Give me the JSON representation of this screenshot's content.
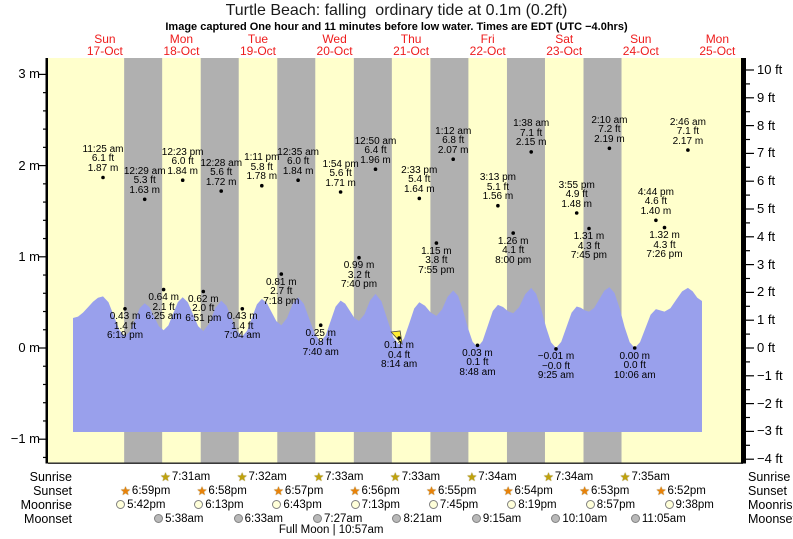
{
  "chart_data": {
    "type": "area",
    "title": "Turtle Beach: falling  ordinary tide at 0.1m (0.2ft)",
    "subtitle": "Image captured One hour and 11 minutes before low water. Times are EDT (UTC −4.0hrs)",
    "days": [
      {
        "name": "Sun",
        "date": "17-Oct"
      },
      {
        "name": "Mon",
        "date": "18-Oct"
      },
      {
        "name": "Tue",
        "date": "19-Oct"
      },
      {
        "name": "Wed",
        "date": "20-Oct"
      },
      {
        "name": "Thu",
        "date": "21-Oct"
      },
      {
        "name": "Fri",
        "date": "22-Oct"
      },
      {
        "name": "Sat",
        "date": "23-Oct"
      },
      {
        "name": "Sun",
        "date": "24-Oct"
      },
      {
        "name": "Mon",
        "date": "25-Oct"
      }
    ],
    "y_axis_left": {
      "unit": "m",
      "tick_values": [
        3,
        2,
        1,
        0,
        -1
      ],
      "tick_labels": [
        "3 m",
        "2 m",
        "1 m",
        "0 m",
        "−1 m"
      ],
      "minor_step_m": 0.2
    },
    "y_axis_right": {
      "unit": "ft",
      "tick_values": [
        10,
        9,
        8,
        7,
        6,
        5,
        4,
        3,
        2,
        1,
        0,
        -1,
        -2,
        -3,
        -4
      ],
      "tick_labels": [
        "10 ft",
        "9 ft",
        "8 ft",
        "7 ft",
        "6 ft",
        "5 ft",
        "4 ft",
        "3 ft",
        "2 ft",
        "1 ft",
        "0 ft",
        "−1 ft",
        "−2 ft",
        "−3 ft",
        "−4 ft"
      ]
    },
    "tides": [
      {
        "day": 0,
        "type": "high",
        "time": "11:25 am",
        "ft": 6.1,
        "m": 1.87,
        "ft_label": "6.1 ft",
        "m_label": "1.87 m"
      },
      {
        "day": 0,
        "type": "low",
        "time": "6:19 pm",
        "ft": 1.4,
        "m": 0.43,
        "ft_label": "1.4 ft",
        "m_label": "0.43 m"
      },
      {
        "day": 1,
        "type": "high",
        "time": "12:29 am",
        "ft": 5.3,
        "m": 1.63,
        "ft_label": "5.3 ft",
        "m_label": "1.63 m"
      },
      {
        "day": 1,
        "type": "low",
        "time": "6:25 am",
        "ft": 2.1,
        "m": 0.64,
        "ft_label": "2.1 ft",
        "m_label": "0.64 m"
      },
      {
        "day": 1,
        "type": "high",
        "time": "12:23 pm",
        "ft": 6.0,
        "m": 1.84,
        "ft_label": "6.0 ft",
        "m_label": "1.84 m"
      },
      {
        "day": 1,
        "type": "low",
        "time": "6:51 pm",
        "ft": 2.0,
        "m": 0.62,
        "ft_label": "2.0 ft",
        "m_label": "0.62 m"
      },
      {
        "day": 2,
        "type": "high",
        "time": "12:28 am",
        "ft": 5.6,
        "m": 1.72,
        "ft_label": "5.6 ft",
        "m_label": "1.72 m"
      },
      {
        "day": 2,
        "type": "low",
        "time": "7:04 am",
        "ft": 1.4,
        "m": 0.43,
        "ft_label": "1.4 ft",
        "m_label": "0.43 m"
      },
      {
        "day": 2,
        "type": "high",
        "time": "1:11 pm",
        "ft": 5.8,
        "m": 1.78,
        "ft_label": "5.8 ft",
        "m_label": "1.78 m"
      },
      {
        "day": 2,
        "type": "low",
        "time": "7:18 pm",
        "ft": 2.7,
        "m": 0.81,
        "ft_label": "2.7 ft",
        "m_label": "0.81 m"
      },
      {
        "day": 3,
        "type": "high",
        "time": "12:35 am",
        "ft": 6.0,
        "m": 1.84,
        "ft_label": "6.0 ft",
        "m_label": "1.84 m"
      },
      {
        "day": 3,
        "type": "low",
        "time": "7:40 am",
        "ft": 0.8,
        "m": 0.25,
        "ft_label": "0.8 ft",
        "m_label": "0.25 m"
      },
      {
        "day": 3,
        "type": "high",
        "time": "1:54 pm",
        "ft": 5.6,
        "m": 1.71,
        "ft_label": "5.6 ft",
        "m_label": "1.71 m"
      },
      {
        "day": 3,
        "type": "low",
        "time": "7:40 pm",
        "ft": 3.2,
        "m": 0.99,
        "ft_label": "3.2 ft",
        "m_label": "0.99 m"
      },
      {
        "day": 4,
        "type": "high",
        "time": "12:50 am",
        "ft": 6.4,
        "m": 1.96,
        "ft_label": "6.4 ft",
        "m_label": "1.96 m"
      },
      {
        "day": 4,
        "type": "low",
        "time": "8:14 am",
        "ft": 0.4,
        "m": 0.11,
        "ft_label": "0.4 ft",
        "m_label": "0.11 m",
        "current": true
      },
      {
        "day": 4,
        "type": "high",
        "time": "2:33 pm",
        "ft": 5.4,
        "m": 1.64,
        "ft_label": "5.4 ft",
        "m_label": "1.64 m"
      },
      {
        "day": 4,
        "type": "low",
        "time": "7:55 pm",
        "ft": 3.8,
        "m": 1.15,
        "ft_label": "3.8 ft",
        "m_label": "1.15 m"
      },
      {
        "day": 5,
        "type": "high",
        "time": "1:12 am",
        "ft": 6.8,
        "m": 2.07,
        "ft_label": "6.8 ft",
        "m_label": "2.07 m"
      },
      {
        "day": 5,
        "type": "low",
        "time": "8:48 am",
        "ft": 0.1,
        "m": 0.03,
        "ft_label": "0.1 ft",
        "m_label": "0.03 m"
      },
      {
        "day": 5,
        "type": "high",
        "time": "3:13 pm",
        "ft": 5.1,
        "m": 1.56,
        "ft_label": "5.1 ft",
        "m_label": "1.56 m"
      },
      {
        "day": 5,
        "type": "low",
        "time": "8:00 pm",
        "ft": 4.1,
        "m": 1.26,
        "ft_label": "4.1 ft",
        "m_label": "1.26 m"
      },
      {
        "day": 6,
        "type": "high",
        "time": "1:38 am",
        "ft": 7.1,
        "m": 2.15,
        "ft_label": "7.1 ft",
        "m_label": "2.15 m"
      },
      {
        "day": 6,
        "type": "low",
        "time": "9:25 am",
        "ft": 0,
        "m": -0.01,
        "ft_label": "−0.0 ft",
        "m_label": "−0.01 m"
      },
      {
        "day": 6,
        "type": "high",
        "time": "3:55 pm",
        "ft": 4.9,
        "m": 1.48,
        "ft_label": "4.9 ft",
        "m_label": "1.48 m"
      },
      {
        "day": 6,
        "type": "low",
        "time": "7:45 pm",
        "ft": 4.3,
        "m": 1.31,
        "ft_label": "4.3 ft",
        "m_label": "1.31 m"
      },
      {
        "day": 7,
        "type": "high",
        "time": "2:10 am",
        "ft": 7.2,
        "m": 2.19,
        "ft_label": "7.2 ft",
        "m_label": "2.19 m"
      },
      {
        "day": 7,
        "type": "low",
        "time": "10:06 am",
        "ft": 0.0,
        "m": 0.0,
        "ft_label": "0.0 ft",
        "m_label": "0.00 m"
      },
      {
        "day": 7,
        "type": "high",
        "time": "4:44 pm",
        "ft": 4.6,
        "m": 1.4,
        "ft_label": "4.6 ft",
        "m_label": "1.40 m"
      },
      {
        "day": 7,
        "type": "low",
        "time": "7:26 pm",
        "ft": 4.3,
        "m": 1.32,
        "ft_label": "4.3 ft",
        "m_label": "1.32 m"
      },
      {
        "day": 8,
        "type": "high",
        "time": "2:46 am",
        "ft": 7.1,
        "m": 2.17,
        "ft_label": "7.1 ft",
        "m_label": "2.17 m"
      }
    ],
    "sun_moon": {
      "rows": [
        {
          "id": "sunrise",
          "label": "Sunrise",
          "icon": "sunrise-star-icon",
          "color": "#bfa20c",
          "entries": [
            {
              "day": 1,
              "time": "7:31am"
            },
            {
              "day": 2,
              "time": "7:32am"
            },
            {
              "day": 3,
              "time": "7:33am"
            },
            {
              "day": 4,
              "time": "7:33am"
            },
            {
              "day": 5,
              "time": "7:34am"
            },
            {
              "day": 6,
              "time": "7:34am"
            },
            {
              "day": 7,
              "time": "7:35am"
            }
          ]
        },
        {
          "id": "sunset",
          "label": "Sunset",
          "icon": "sunset-star-icon",
          "color": "#e8820a",
          "entries": [
            {
              "day": 0,
              "time": "6:59pm"
            },
            {
              "day": 1,
              "time": "6:58pm"
            },
            {
              "day": 2,
              "time": "6:57pm"
            },
            {
              "day": 3,
              "time": "6:56pm"
            },
            {
              "day": 4,
              "time": "6:55pm"
            },
            {
              "day": 5,
              "time": "6:54pm"
            },
            {
              "day": 6,
              "time": "6:53pm"
            },
            {
              "day": 7,
              "time": "6:52pm"
            }
          ]
        },
        {
          "id": "moonrise",
          "label": "Moonrise",
          "icon": "moonrise-circle-icon",
          "color": "#ffffd9",
          "entries": [
            {
              "day": 0,
              "time": "5:42pm"
            },
            {
              "day": 1,
              "time": "6:13pm"
            },
            {
              "day": 2,
              "time": "6:43pm"
            },
            {
              "day": 3,
              "time": "7:13pm"
            },
            {
              "day": 4,
              "time": "7:45pm"
            },
            {
              "day": 5,
              "time": "8:19pm"
            },
            {
              "day": 6,
              "time": "8:57pm"
            },
            {
              "day": 7,
              "time": "9:38pm"
            }
          ]
        },
        {
          "id": "moonset",
          "label": "Moonset",
          "icon": "moonset-circle-icon",
          "color": "#b9b9b9",
          "entries": [
            {
              "day": 1,
              "time": "5:38am"
            },
            {
              "day": 2,
              "time": "6:33am"
            },
            {
              "day": 3,
              "time": "7:27am"
            },
            {
              "day": 4,
              "time": "8:21am"
            },
            {
              "day": 5,
              "time": "9:15am"
            },
            {
              "day": 6,
              "time": "10:10am"
            },
            {
              "day": 7,
              "time": "11:05am"
            }
          ]
        }
      ]
    },
    "moon_note": {
      "text": "Full Moon | 10:57am",
      "day": 3,
      "time": "10:57am"
    },
    "colors": {
      "day_band": "#ffffcc",
      "night_band": "#b0b0b0",
      "water": "#99a0ec",
      "axis": "#000000",
      "day_label_red": "#ee1c1c",
      "current_marker": "#ffee33"
    }
  }
}
